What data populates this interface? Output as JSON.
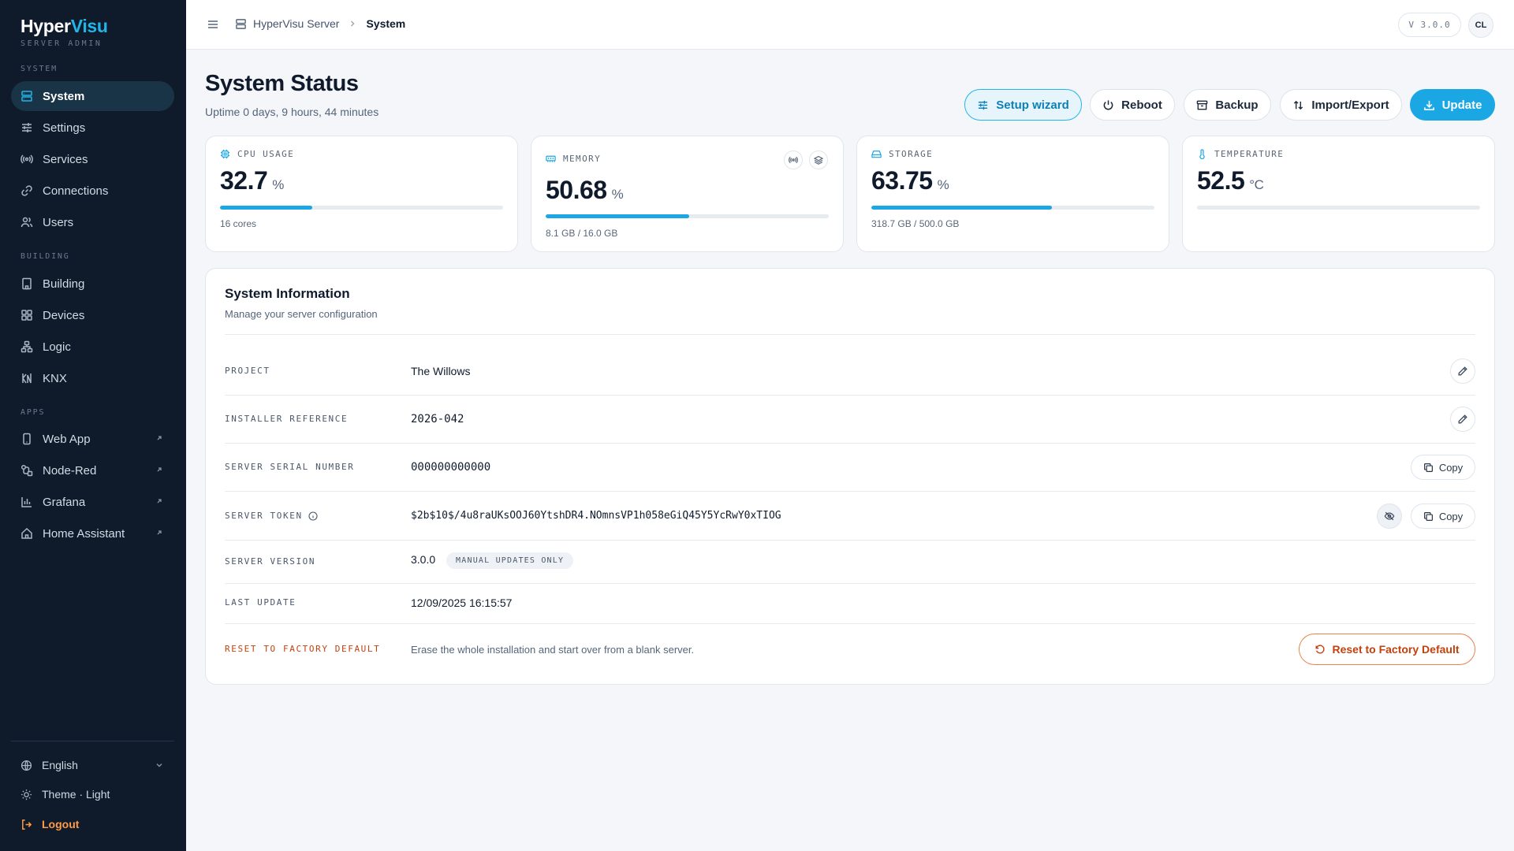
{
  "sidebar": {
    "logo_main": "Hyper",
    "logo_accent": "Visu",
    "subtitle": "SERVER ADMIN",
    "sections": {
      "system": "SYSTEM",
      "building": "BUILDING",
      "apps": "APPS"
    },
    "system_items": [
      {
        "label": "System",
        "icon": "server-icon",
        "active": true
      },
      {
        "label": "Settings",
        "icon": "sliders-icon"
      },
      {
        "label": "Services",
        "icon": "broadcast-icon"
      },
      {
        "label": "Connections",
        "icon": "link-icon"
      },
      {
        "label": "Users",
        "icon": "users-icon"
      }
    ],
    "building_items": [
      {
        "label": "Building",
        "icon": "building-icon"
      },
      {
        "label": "Devices",
        "icon": "grid-icon"
      },
      {
        "label": "Logic",
        "icon": "network-icon"
      },
      {
        "label": "KNX",
        "icon": "knx-icon"
      }
    ],
    "apps_items": [
      {
        "label": "Web App",
        "icon": "phone-icon"
      },
      {
        "label": "Node-Red",
        "icon": "flow-icon"
      },
      {
        "label": "Grafana",
        "icon": "chart-icon"
      },
      {
        "label": "Home Assistant",
        "icon": "home-icon"
      }
    ],
    "footer": {
      "language": "English",
      "theme": "Theme · Light",
      "logout": "Logout"
    }
  },
  "topbar": {
    "breadcrumb_root": "HyperVisu Server",
    "breadcrumb_current": "System",
    "version": "V 3.0.0",
    "avatar": "CL"
  },
  "header": {
    "title": "System Status",
    "uptime": "Uptime 0 days, 9 hours, 44 minutes",
    "buttons": {
      "wizard": "Setup wizard",
      "reboot": "Reboot",
      "backup": "Backup",
      "import_export": "Import/Export",
      "update": "Update"
    }
  },
  "stats": {
    "cpu": {
      "label": "CPU USAGE",
      "value": "32.7",
      "unit": "%",
      "percent": 32.7,
      "sub": "16 cores"
    },
    "memory": {
      "label": "MEMORY",
      "value": "50.68",
      "unit": "%",
      "percent": 50.68,
      "sub": "8.1 GB / 16.0 GB"
    },
    "storage": {
      "label": "STORAGE",
      "value": "63.75",
      "unit": "%",
      "percent": 63.75,
      "sub": "318.7 GB / 500.0 GB"
    },
    "temperature": {
      "label": "TEMPERATURE",
      "value": "52.5",
      "unit": "°C",
      "percent": 0
    }
  },
  "info": {
    "title": "System Information",
    "subtitle": "Manage your server configuration",
    "project_label": "PROJECT",
    "project_value": "The Willows",
    "installer_label": "INSTALLER REFERENCE",
    "installer_value": "2026-042",
    "serial_label": "SERVER SERIAL NUMBER",
    "serial_value": "000000000000",
    "token_label": "SERVER TOKEN",
    "token_value": "$2b$10$/4u8raUKsOOJ60YtshDR4.NOmnsVP1h058eGiQ45Y5YcRwY0xTIOG",
    "version_label": "SERVER VERSION",
    "version_value": "3.0.0",
    "version_badge": "MANUAL UPDATES ONLY",
    "last_update_label": "LAST UPDATE",
    "last_update_value": "12/09/2025 16:15:57",
    "reset_label": "RESET TO FACTORY DEFAULT",
    "reset_desc": "Erase the whole installation and start over from a blank server.",
    "reset_button": "Reset to Factory Default",
    "copy_label": "Copy"
  },
  "colors": {
    "accent": "#1aa7e4",
    "sidebar_bg": "#0f1b2b",
    "danger": "#c2410c",
    "logout": "#ff9a48"
  }
}
